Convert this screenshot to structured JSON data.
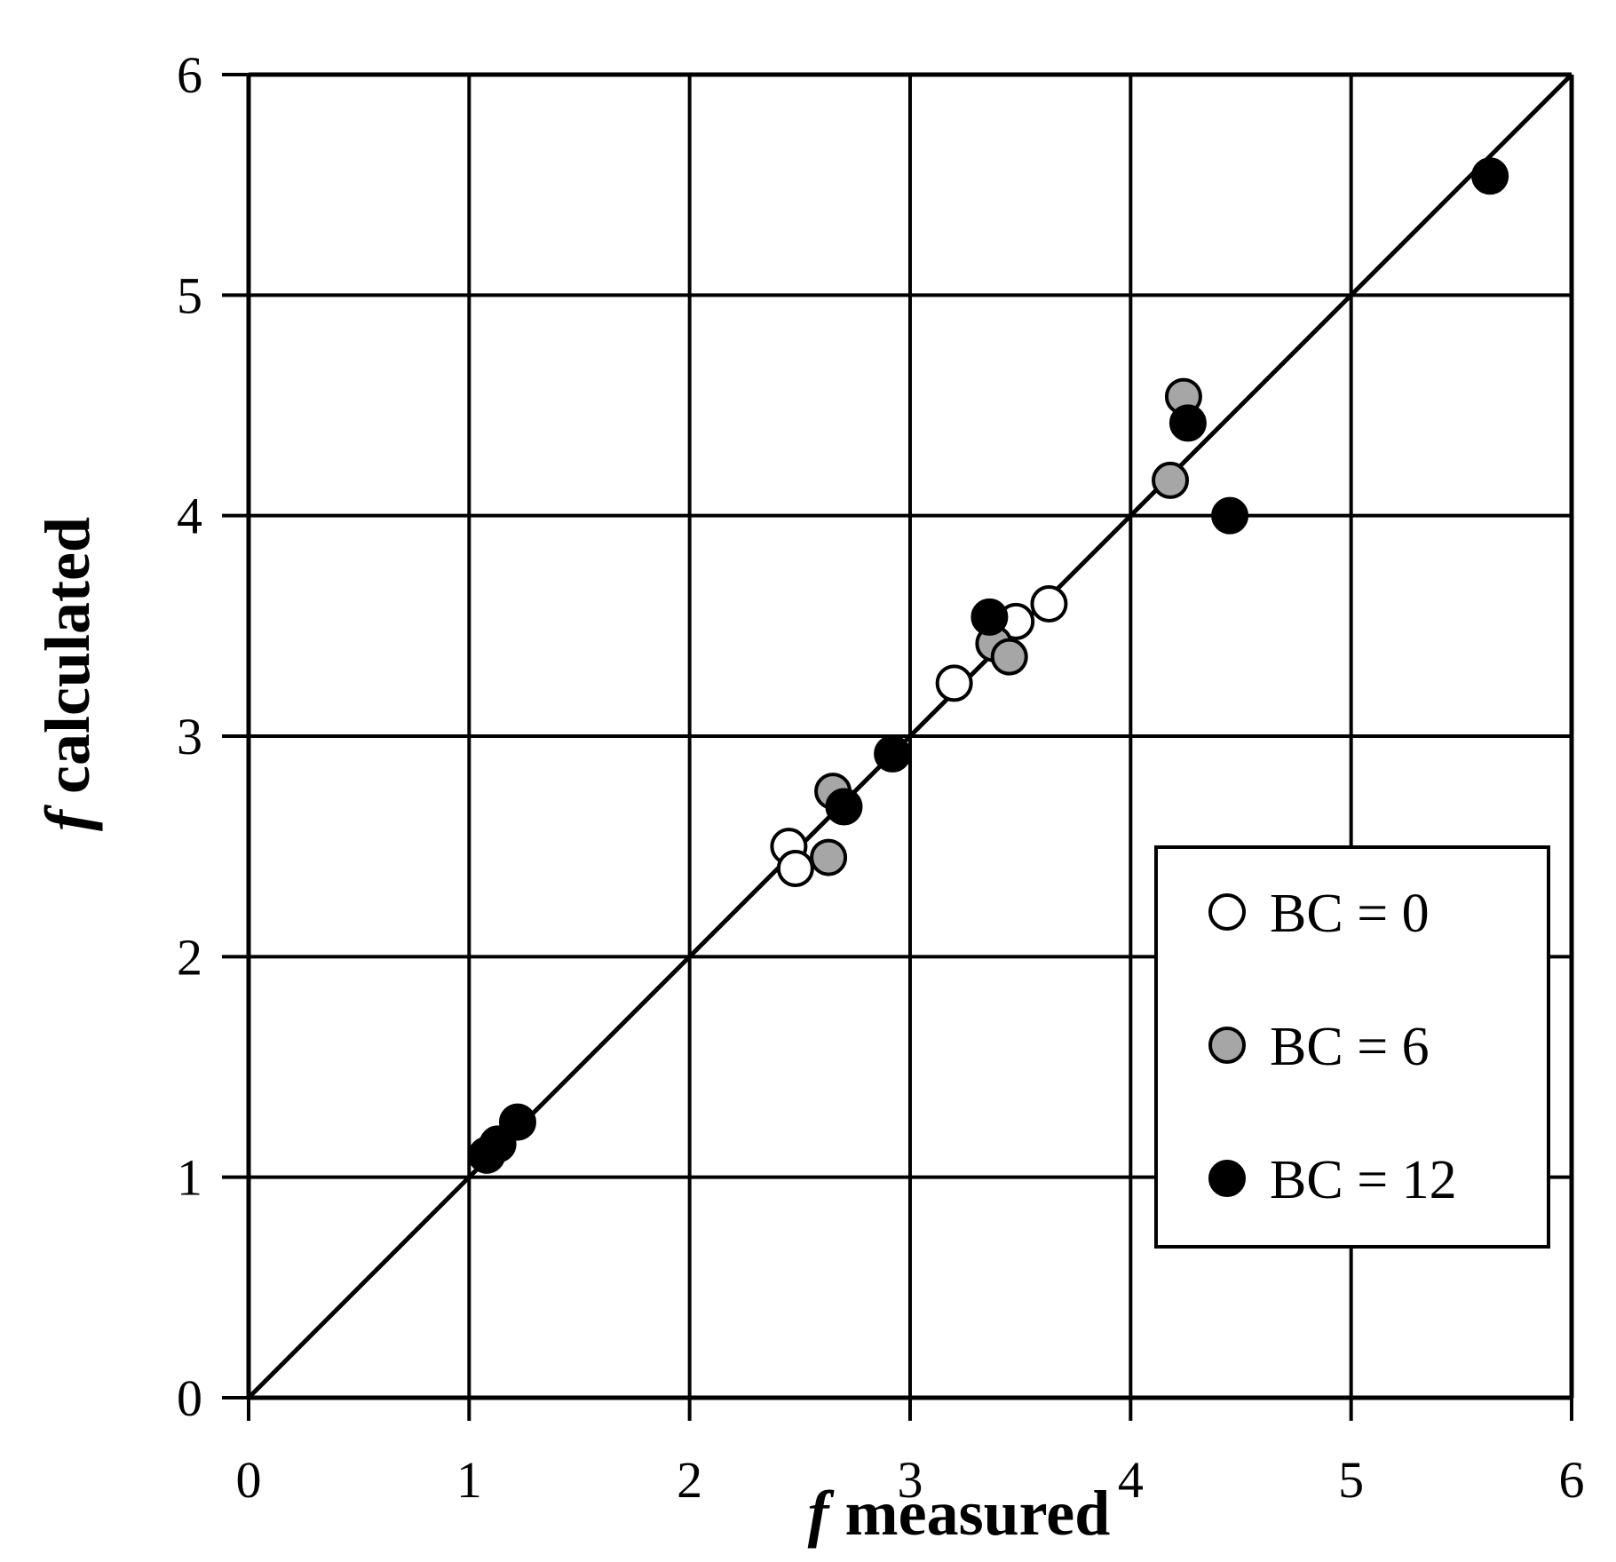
{
  "chart_data": {
    "type": "scatter",
    "title": "",
    "xlabel": "f measured",
    "ylabel": "f calculated",
    "xlim": [
      0,
      6
    ],
    "ylim": [
      0,
      6
    ],
    "xticks": [
      "0",
      "1",
      "2",
      "3",
      "4",
      "5",
      "6"
    ],
    "yticks": [
      "0",
      "1",
      "2",
      "3",
      "4",
      "5",
      "6"
    ],
    "grid": true,
    "reference_line": {
      "x": [
        0,
        6
      ],
      "y": [
        0,
        6
      ]
    },
    "legend_position": "bottom-right",
    "series": [
      {
        "name": "BC = 0",
        "color": "#ffffff",
        "points": [
          {
            "x": 2.45,
            "y": 2.5
          },
          {
            "x": 2.48,
            "y": 2.4
          },
          {
            "x": 3.2,
            "y": 3.24
          },
          {
            "x": 3.48,
            "y": 3.52
          },
          {
            "x": 3.63,
            "y": 3.6
          }
        ]
      },
      {
        "name": "BC = 6",
        "color": "#a6a6a6",
        "points": [
          {
            "x": 2.63,
            "y": 2.45
          },
          {
            "x": 2.65,
            "y": 2.75
          },
          {
            "x": 3.38,
            "y": 3.42
          },
          {
            "x": 3.45,
            "y": 3.36
          },
          {
            "x": 4.18,
            "y": 4.16
          },
          {
            "x": 4.24,
            "y": 4.54
          }
        ]
      },
      {
        "name": "BC = 12",
        "color": "#000000",
        "points": [
          {
            "x": 1.08,
            "y": 1.1
          },
          {
            "x": 1.13,
            "y": 1.15
          },
          {
            "x": 1.22,
            "y": 1.25
          },
          {
            "x": 2.7,
            "y": 2.68
          },
          {
            "x": 2.92,
            "y": 2.92
          },
          {
            "x": 3.36,
            "y": 3.54
          },
          {
            "x": 4.26,
            "y": 4.42
          },
          {
            "x": 4.45,
            "y": 4.0
          },
          {
            "x": 5.63,
            "y": 5.54
          }
        ]
      }
    ]
  }
}
